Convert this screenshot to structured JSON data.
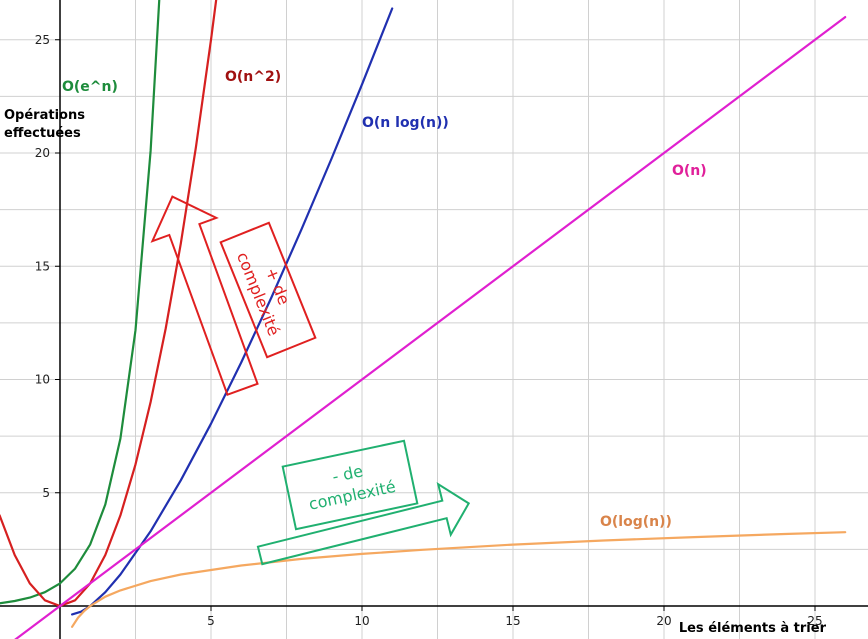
{
  "chart_data": {
    "type": "line",
    "title": "",
    "xlabel": "Les éléments à trier",
    "ylabel_line1": "Opérations",
    "ylabel_line2": "effectuées",
    "xlim": [
      -2,
      26
    ],
    "ylim": [
      -1.5,
      26
    ],
    "x_ticks": [
      5,
      10,
      15,
      20,
      25
    ],
    "y_ticks": [
      5,
      10,
      15,
      20,
      25
    ],
    "grid": true,
    "colors": {
      "exp": "#1e8c3c",
      "square": "#d62020",
      "nlogn": "#2030b0",
      "linear": "#e020d0",
      "log": "#f5a860",
      "grid": "#d0d0d0",
      "axis": "#000000"
    },
    "series": [
      {
        "key": "exp",
        "name": "O(e^n)",
        "label_color": "#1e8c3c",
        "points": [
          [
            -2,
            0.12
          ],
          [
            -1.5,
            0.22
          ],
          [
            -1,
            0.37
          ],
          [
            -0.5,
            0.61
          ],
          [
            0,
            1
          ],
          [
            0.5,
            1.65
          ],
          [
            1,
            2.72
          ],
          [
            1.5,
            4.48
          ],
          [
            2,
            7.39
          ],
          [
            2.5,
            12.18
          ],
          [
            3,
            20.09
          ],
          [
            3.3,
            27.1
          ]
        ]
      },
      {
        "key": "square",
        "name": "O(n^2)",
        "label_color": "#a01010",
        "points": [
          [
            -2,
            4
          ],
          [
            -1.5,
            2.25
          ],
          [
            -1,
            1
          ],
          [
            -0.5,
            0.25
          ],
          [
            0,
            0
          ],
          [
            0.5,
            0.25
          ],
          [
            1,
            1
          ],
          [
            1.5,
            2.25
          ],
          [
            2,
            4
          ],
          [
            2.5,
            6.25
          ],
          [
            3,
            9
          ],
          [
            3.5,
            12.25
          ],
          [
            4,
            16
          ],
          [
            4.5,
            20.25
          ],
          [
            5,
            25
          ],
          [
            5.2,
            27.04
          ]
        ]
      },
      {
        "key": "nlogn",
        "name": "O(n log(n))",
        "label_color": "#2030b0",
        "points": [
          [
            0.4,
            -0.37
          ],
          [
            0.7,
            -0.25
          ],
          [
            1,
            0
          ],
          [
            1.5,
            0.61
          ],
          [
            2,
            1.39
          ],
          [
            3,
            3.3
          ],
          [
            4,
            5.55
          ],
          [
            5,
            8.05
          ],
          [
            6,
            10.75
          ],
          [
            7,
            13.62
          ],
          [
            8,
            16.64
          ],
          [
            9,
            19.78
          ],
          [
            10,
            23.03
          ],
          [
            11,
            26.38
          ]
        ]
      },
      {
        "key": "linear",
        "name": "O(n)",
        "label_color": "#e0209a",
        "points": [
          [
            -2,
            -2
          ],
          [
            26,
            26
          ]
        ]
      },
      {
        "key": "log",
        "name": "O(log(n))",
        "label_color": "#d9844a",
        "points": [
          [
            0.4,
            -0.92
          ],
          [
            0.6,
            -0.51
          ],
          [
            0.8,
            -0.22
          ],
          [
            1,
            0
          ],
          [
            1.5,
            0.41
          ],
          [
            2,
            0.69
          ],
          [
            3,
            1.1
          ],
          [
            4,
            1.39
          ],
          [
            6,
            1.79
          ],
          [
            8,
            2.08
          ],
          [
            10,
            2.3
          ],
          [
            12,
            2.48
          ],
          [
            15,
            2.71
          ],
          [
            18,
            2.89
          ],
          [
            21,
            3.04
          ],
          [
            24,
            3.18
          ],
          [
            26,
            3.26
          ]
        ]
      }
    ],
    "annotations": {
      "more_complexity": {
        "line1": "+ de",
        "line2": "complexité",
        "color": "#e02020"
      },
      "less_complexity": {
        "line1": "- de",
        "line2": "complexité",
        "color": "#20b070"
      }
    }
  }
}
